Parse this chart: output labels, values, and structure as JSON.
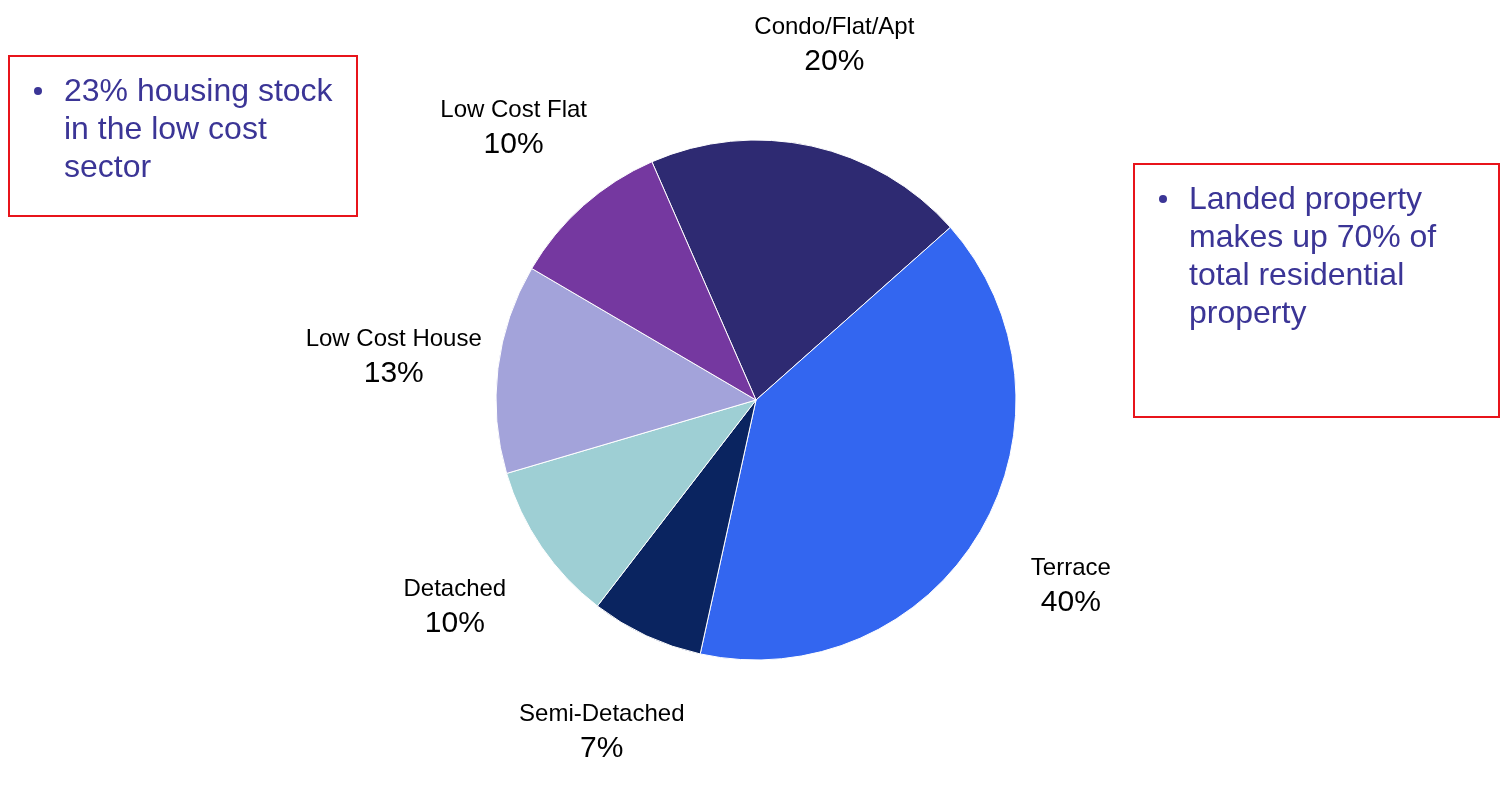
{
  "chart_data": {
    "type": "pie",
    "categories": [
      "Condo/Flat/Apt",
      "Terrace",
      "Semi-Detached",
      "Detached",
      "Low Cost House",
      "Low Cost Flat"
    ],
    "values": [
      20,
      40,
      7,
      10,
      13,
      10
    ],
    "colors": [
      "#2e2a72",
      "#3366f0",
      "#0a2460",
      "#9ecfd4",
      "#a3a3da",
      "#7538a0"
    ],
    "value_labels": [
      "20%",
      "40%",
      "7%",
      "10%",
      "13%",
      "10%"
    ],
    "annotations": [
      "23% housing stock in the low cost sector",
      "Landed property makes up 70% of total residential property"
    ]
  }
}
